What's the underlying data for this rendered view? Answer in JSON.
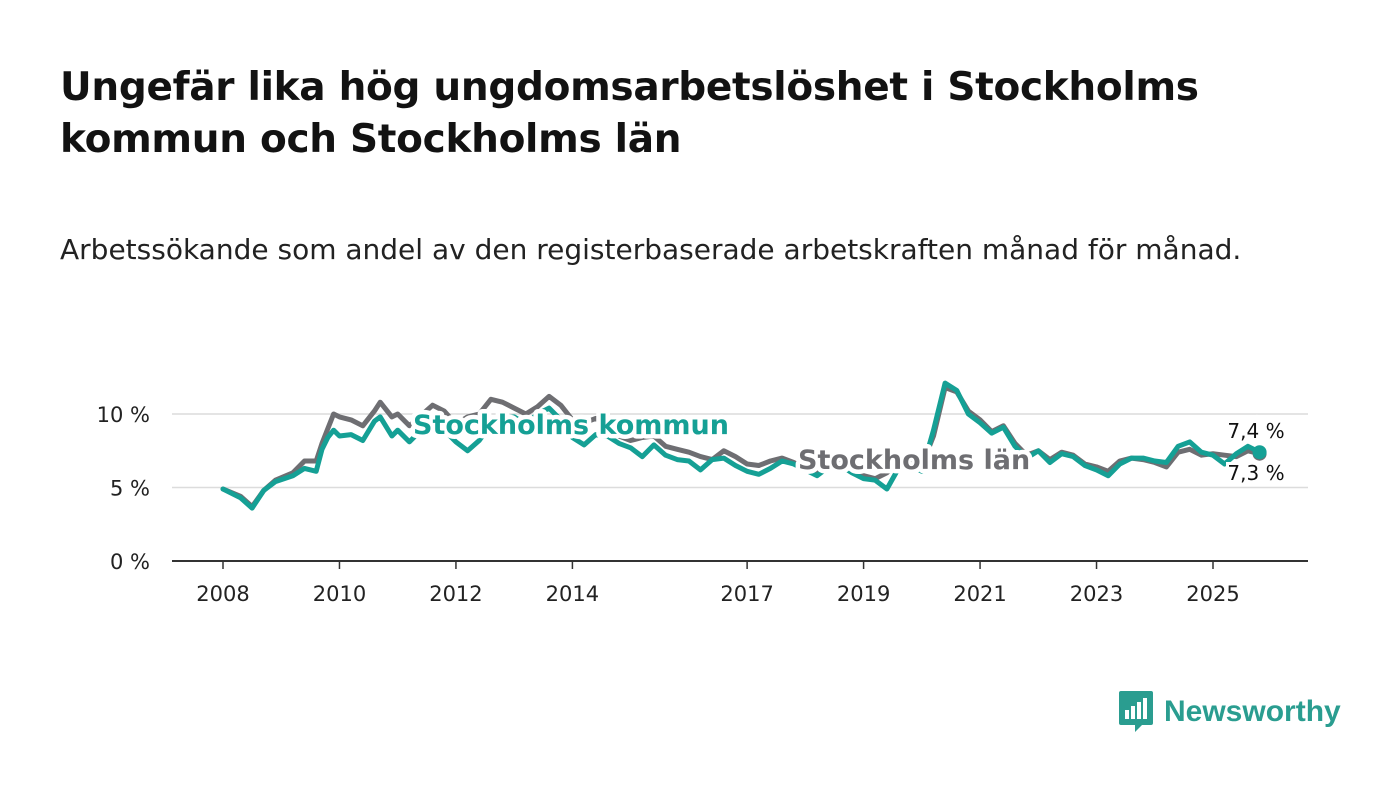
{
  "title": "Ungefär lika hög ungdomsarbetslöshet i Stockholms kommun och Stockholms län",
  "subtitle": "Arbetssökande som andel av den registerbaserade arbetskraften månad för månad.",
  "brand": {
    "name": "Newsworthy",
    "icon": "newsworthy-logo-icon",
    "color": "#2a9d90"
  },
  "colors": {
    "kommun": "#15a095",
    "lan": "#6e6e72",
    "grid": "#dcdcdc",
    "axis": "#333333"
  },
  "chart_data": {
    "type": "line",
    "title": "Ungefär lika hög ungdomsarbetslöshet i Stockholms kommun och Stockholms län",
    "xlabel": "",
    "ylabel": "",
    "ylim": [
      0,
      12.5
    ],
    "xlim": [
      2007.6,
      2026.75
    ],
    "yticks": [
      0,
      5,
      10
    ],
    "ytick_labels": [
      "0 %",
      "5 %",
      "10 %"
    ],
    "xticks": [
      2008,
      2010,
      2012,
      2014,
      2017,
      2019,
      2021,
      2023,
      2025
    ],
    "xtick_labels": [
      "2008",
      "2010",
      "2012",
      "2014",
      "2017",
      "2019",
      "2021",
      "2023",
      "2025"
    ],
    "grid": true,
    "series": [
      {
        "name": "Stockholms län",
        "label": "Stockholms län",
        "end_label": "7,3 %",
        "x": [
          2008.0,
          2008.3,
          2008.5,
          2008.7,
          2008.9,
          2009.2,
          2009.4,
          2009.6,
          2009.7,
          2009.8,
          2009.9,
          2010.0,
          2010.2,
          2010.4,
          2010.6,
          2010.7,
          2010.9,
          2011.0,
          2011.2,
          2011.4,
          2011.6,
          2011.8,
          2012.0,
          2012.2,
          2012.4,
          2012.6,
          2012.8,
          2013.0,
          2013.2,
          2013.4,
          2013.6,
          2013.8,
          2014.0,
          2014.2,
          2014.4,
          2014.6,
          2014.8,
          2015.0,
          2015.2,
          2015.4,
          2015.6,
          2015.8,
          2016.0,
          2016.2,
          2016.4,
          2016.6,
          2016.8,
          2017.0,
          2017.2,
          2017.4,
          2017.6,
          2017.8,
          2018.0,
          2018.2,
          2018.4,
          2018.6,
          2018.8,
          2019.0,
          2019.2,
          2019.4,
          2019.6,
          2019.8,
          2020.0,
          2020.2,
          2020.4,
          2020.6,
          2020.8,
          2021.0,
          2021.2,
          2021.4,
          2021.6,
          2021.8,
          2022.0,
          2022.2,
          2022.4,
          2022.6,
          2022.8,
          2023.0,
          2023.2,
          2023.4,
          2023.6,
          2023.8,
          2024.0,
          2024.2,
          2024.4,
          2024.6,
          2024.8,
          2025.0,
          2025.2,
          2025.4,
          2025.6,
          2025.8
        ],
        "values": [
          4.9,
          4.4,
          3.7,
          4.8,
          5.5,
          6.0,
          6.8,
          6.8,
          8.0,
          9.0,
          10.0,
          9.8,
          9.6,
          9.2,
          10.2,
          10.8,
          9.8,
          10.0,
          9.2,
          9.9,
          10.6,
          10.2,
          9.3,
          9.8,
          10.0,
          11.0,
          10.8,
          10.4,
          10.0,
          10.5,
          11.2,
          10.6,
          9.6,
          9.4,
          9.7,
          9.3,
          8.5,
          8.2,
          8.4,
          8.5,
          7.8,
          7.6,
          7.4,
          7.1,
          6.9,
          7.5,
          7.1,
          6.6,
          6.5,
          6.8,
          7.0,
          6.7,
          6.3,
          6.0,
          6.5,
          6.6,
          6.2,
          5.8,
          5.6,
          6.0,
          6.7,
          6.6,
          6.5,
          8.5,
          11.8,
          11.5,
          10.2,
          9.6,
          8.8,
          9.2,
          8.0,
          7.2,
          7.5,
          6.9,
          7.4,
          7.2,
          6.6,
          6.4,
          6.1,
          6.8,
          7.0,
          6.9,
          6.7,
          6.4,
          7.4,
          7.6,
          7.2,
          7.3,
          7.2,
          7.1,
          7.5,
          7.3
        ]
      },
      {
        "name": "Stockholms kommun",
        "label": "Stockholms kommun",
        "end_label": "7,4 %",
        "x": [
          2008.0,
          2008.3,
          2008.5,
          2008.7,
          2008.9,
          2009.2,
          2009.4,
          2009.6,
          2009.7,
          2009.8,
          2009.9,
          2010.0,
          2010.2,
          2010.4,
          2010.6,
          2010.7,
          2010.9,
          2011.0,
          2011.2,
          2011.4,
          2011.6,
          2011.8,
          2012.0,
          2012.2,
          2012.4,
          2012.6,
          2012.8,
          2013.0,
          2013.2,
          2013.4,
          2013.6,
          2013.8,
          2014.0,
          2014.2,
          2014.4,
          2014.6,
          2014.8,
          2015.0,
          2015.2,
          2015.4,
          2015.6,
          2015.8,
          2016.0,
          2016.2,
          2016.4,
          2016.6,
          2016.8,
          2017.0,
          2017.2,
          2017.4,
          2017.6,
          2017.8,
          2018.0,
          2018.2,
          2018.4,
          2018.6,
          2018.8,
          2019.0,
          2019.2,
          2019.4,
          2019.6,
          2019.8,
          2020.0,
          2020.2,
          2020.4,
          2020.6,
          2020.8,
          2021.0,
          2021.2,
          2021.4,
          2021.6,
          2021.8,
          2022.0,
          2022.2,
          2022.4,
          2022.6,
          2022.8,
          2023.0,
          2023.2,
          2023.4,
          2023.6,
          2023.8,
          2024.0,
          2024.2,
          2024.4,
          2024.6,
          2024.8,
          2025.0,
          2025.2,
          2025.4,
          2025.6,
          2025.8
        ],
        "values": [
          4.9,
          4.3,
          3.6,
          4.8,
          5.4,
          5.8,
          6.3,
          6.1,
          7.6,
          8.4,
          8.9,
          8.5,
          8.6,
          8.2,
          9.5,
          9.8,
          8.5,
          8.9,
          8.1,
          8.9,
          9.3,
          8.9,
          8.1,
          7.5,
          8.2,
          9.3,
          9.7,
          9.8,
          9.3,
          10.0,
          10.4,
          9.6,
          8.4,
          7.9,
          8.6,
          8.5,
          8.0,
          7.7,
          7.1,
          7.9,
          7.2,
          6.9,
          6.8,
          6.2,
          6.9,
          7.0,
          6.5,
          6.1,
          5.9,
          6.3,
          6.8,
          6.6,
          6.2,
          5.8,
          6.4,
          6.5,
          6.0,
          5.6,
          5.5,
          4.9,
          6.3,
          6.5,
          6.1,
          8.9,
          12.1,
          11.6,
          10.0,
          9.4,
          8.7,
          9.1,
          7.8,
          7.0,
          7.5,
          6.7,
          7.3,
          7.1,
          6.5,
          6.2,
          5.8,
          6.6,
          7.0,
          7.0,
          6.8,
          6.7,
          7.8,
          8.1,
          7.4,
          7.2,
          6.6,
          7.3,
          7.8,
          7.4
        ]
      }
    ]
  }
}
